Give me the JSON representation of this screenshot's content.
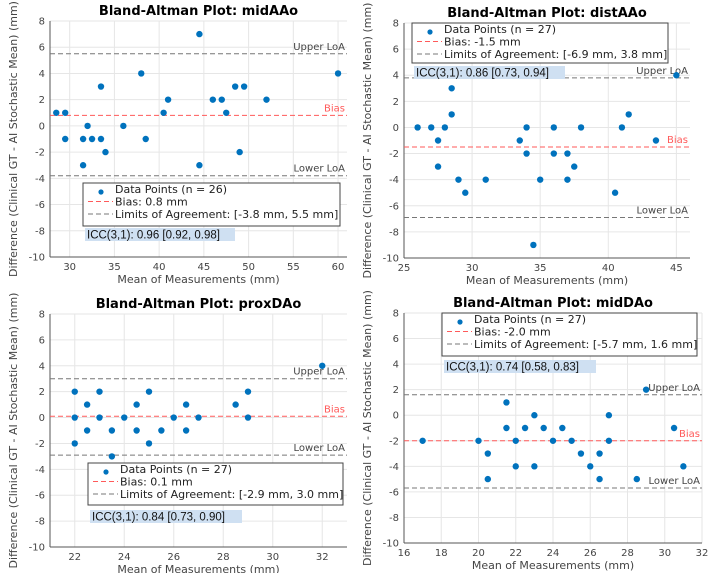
{
  "colors": {
    "points": "#0072BD",
    "bias": "#FF5A5A",
    "loa": "#777777",
    "icc_bg": "#CFE0F2",
    "grid": "#E6E6E6"
  },
  "chart_data": [
    {
      "type": "scatter",
      "title": "Bland-Altman Plot: midAAo",
      "xlabel": "Mean of Measurements (mm)",
      "ylabel": "Difference (Clinical GT - AI Stochastic Mean) (mm)",
      "xlim": [
        27.8,
        61
      ],
      "ylim": [
        -10,
        8
      ],
      "xticks": [
        30,
        35,
        40,
        45,
        50,
        55,
        60
      ],
      "yticks": [
        -10,
        -8,
        -6,
        -4,
        -2,
        0,
        2,
        4,
        6,
        8
      ],
      "grid": true,
      "legend_placement": "lower-center",
      "points": [
        [
          28.5,
          1
        ],
        [
          29.5,
          1
        ],
        [
          29.5,
          -1
        ],
        [
          31.5,
          -1
        ],
        [
          31.5,
          -3
        ],
        [
          32,
          0
        ],
        [
          32.5,
          -1
        ],
        [
          33.5,
          3
        ],
        [
          33.5,
          -1
        ],
        [
          34,
          -2
        ],
        [
          36,
          0
        ],
        [
          38,
          4
        ],
        [
          38.5,
          -1
        ],
        [
          40.5,
          1
        ],
        [
          41,
          2
        ],
        [
          44.5,
          7
        ],
        [
          44.5,
          -3
        ],
        [
          46,
          2
        ],
        [
          47,
          2
        ],
        [
          47.5,
          1
        ],
        [
          48.5,
          3
        ],
        [
          49.5,
          3
        ],
        [
          49,
          -2
        ],
        [
          52,
          2
        ],
        [
          60,
          4
        ]
      ],
      "bias": 0.8,
      "loa": [
        -3.8,
        5.5
      ],
      "line_labels": {
        "upper": "Upper LoA",
        "lower": "Lower LoA",
        "bias": "Bias"
      },
      "legend": [
        "Data Points (n = 26)",
        "Bias: 0.8 mm",
        "Limits of Agreement: [-3.8 mm, 5.5 mm]"
      ],
      "icc": "ICC(3,1): 0.96 [0.92, 0.98]"
    },
    {
      "type": "scatter",
      "title": "Bland-Altman Plot: distAAo",
      "xlabel": "Mean of Measurements (mm)",
      "ylabel": "Difference (Clinical GT - AI Stochastic Mean) (mm)",
      "xlim": [
        25,
        46
      ],
      "ylim": [
        -10,
        8
      ],
      "xticks": [
        25,
        30,
        35,
        40,
        45
      ],
      "yticks": [
        -10,
        -8,
        -6,
        -4,
        -2,
        0,
        2,
        4,
        6,
        8
      ],
      "grid": true,
      "legend_placement": "top",
      "points": [
        [
          26,
          0
        ],
        [
          27,
          0
        ],
        [
          27.5,
          -1
        ],
        [
          27.5,
          -3
        ],
        [
          28,
          0
        ],
        [
          28.5,
          3
        ],
        [
          28.5,
          1
        ],
        [
          29,
          -4
        ],
        [
          29.5,
          -5
        ],
        [
          31,
          -4
        ],
        [
          33.5,
          -1
        ],
        [
          34,
          0
        ],
        [
          34,
          -2
        ],
        [
          34.5,
          -9
        ],
        [
          35,
          -4
        ],
        [
          36,
          0
        ],
        [
          36,
          -2
        ],
        [
          37,
          -2
        ],
        [
          37,
          -4
        ],
        [
          37.5,
          -3
        ],
        [
          38,
          0
        ],
        [
          40.5,
          -5
        ],
        [
          41,
          0
        ],
        [
          41.5,
          1
        ],
        [
          43.5,
          -1
        ],
        [
          45,
          4
        ]
      ],
      "bias": -1.5,
      "loa": [
        -6.9,
        3.8
      ],
      "line_labels": {
        "upper": "Upper LoA",
        "lower": "Lower LoA",
        "bias": "Bias"
      },
      "legend": [
        "Data Points (n = 27)",
        "Bias: -1.5 mm",
        "Limits of Agreement: [-6.9 mm, 3.8 mm]"
      ],
      "icc": "ICC(3,1): 0.86 [0.73, 0.94]"
    },
    {
      "type": "scatter",
      "title": "Bland-Altman Plot: proxDAo",
      "xlabel": "Mean of Measurements (mm)",
      "ylabel": "Difference (Clinical GT - AI Stochastic Mean) (mm)",
      "xlim": [
        21,
        33
      ],
      "ylim": [
        -10,
        8
      ],
      "xticks": [
        22,
        24,
        26,
        28,
        30,
        32
      ],
      "yticks": [
        -10,
        -8,
        -6,
        -4,
        -2,
        0,
        2,
        4,
        6,
        8
      ],
      "grid": true,
      "legend_placement": "lower-center",
      "points": [
        [
          22,
          2
        ],
        [
          22,
          0
        ],
        [
          22,
          -2
        ],
        [
          22.5,
          1
        ],
        [
          22.5,
          -1
        ],
        [
          23,
          2
        ],
        [
          23,
          0
        ],
        [
          23.5,
          -1
        ],
        [
          23.5,
          -3
        ],
        [
          24,
          0
        ],
        [
          24.5,
          1
        ],
        [
          24.5,
          -1
        ],
        [
          25,
          2
        ],
        [
          25,
          -2
        ],
        [
          25.5,
          -1
        ],
        [
          26,
          0
        ],
        [
          26.5,
          1
        ],
        [
          26.5,
          -1
        ],
        [
          27,
          0
        ],
        [
          28.5,
          1
        ],
        [
          29,
          2
        ],
        [
          29,
          0
        ],
        [
          32,
          4
        ]
      ],
      "bias": 0.1,
      "loa": [
        -2.9,
        3.0
      ],
      "line_labels": {
        "upper": "Upper LoA",
        "lower": "Lower LoA",
        "bias": "Bias"
      },
      "legend": [
        "Data Points (n = 27)",
        "Bias: 0.1 mm",
        "Limits of Agreement: [-2.9 mm, 3.0 mm]"
      ],
      "icc": "ICC(3,1): 0.84 [0.73, 0.90]"
    },
    {
      "type": "scatter",
      "title": "Bland-Altman Plot: midDAo",
      "xlabel": "Mean of Measurements (mm)",
      "ylabel": "Difference (Clinical GT - AI Stochastic Mean) (mm)",
      "xlim": [
        16,
        32
      ],
      "ylim": [
        -10,
        8
      ],
      "xticks": [
        16,
        18,
        20,
        22,
        24,
        26,
        28,
        30,
        32
      ],
      "yticks": [
        -10,
        -8,
        -6,
        -4,
        -2,
        0,
        2,
        4,
        6,
        8
      ],
      "grid": true,
      "legend_placement": "top",
      "points": [
        [
          17,
          -2
        ],
        [
          20,
          -2
        ],
        [
          20.5,
          -3
        ],
        [
          20.5,
          -5
        ],
        [
          21.5,
          1
        ],
        [
          21.5,
          -1
        ],
        [
          22,
          -2
        ],
        [
          22,
          -4
        ],
        [
          22.5,
          -1
        ],
        [
          23,
          0
        ],
        [
          23,
          -4
        ],
        [
          23.5,
          -1
        ],
        [
          24,
          -2
        ],
        [
          24.5,
          -1
        ],
        [
          25,
          -2
        ],
        [
          25.5,
          -3
        ],
        [
          26,
          -4
        ],
        [
          26.5,
          -3
        ],
        [
          26.5,
          -5
        ],
        [
          27,
          0
        ],
        [
          27,
          -2
        ],
        [
          28.5,
          -5
        ],
        [
          29,
          2
        ],
        [
          30.5,
          -1
        ],
        [
          31,
          -4
        ]
      ],
      "bias": -2.0,
      "loa": [
        -5.7,
        1.6
      ],
      "line_labels": {
        "upper": "Upper LoA",
        "lower": "Lower LoA",
        "bias": "Bias"
      },
      "legend": [
        "Data Points (n = 27)",
        "Bias: -2.0 mm",
        "Limits of Agreement: [-5.7 mm, 1.6 mm]"
      ],
      "icc": "ICC(3,1): 0.74 [0.58, 0.83]"
    }
  ]
}
